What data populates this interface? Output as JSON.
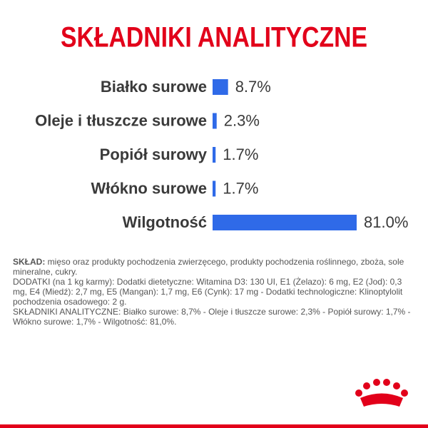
{
  "chart_data": {
    "type": "hbar",
    "title": "SKŁADNIKI ANALITYCZNE",
    "categories": [
      "Białko surowe",
      "Oleje i tłuszcze surowe",
      "Popiół surowy",
      "Włókno surowe",
      "Wilgotność"
    ],
    "values": [
      8.7,
      2.3,
      1.7,
      1.7,
      81.0
    ],
    "value_labels": [
      "8.7%",
      "2.3%",
      "1.7%",
      "1.7%",
      "81.0%"
    ],
    "color": "#2f6ae8"
  },
  "composition": {
    "label": "SKŁAD:",
    "text": "mięso oraz produkty pochodzenia zwierzęcego, produkty pochodzenia roślinnego, zboża, sole mineralne, cukry."
  },
  "additives": "DODATKI (na 1 kg karmy): Dodatki dietetyczne: Witamina D3: 130 UI, E1 (Żelazo): 6 mg, E2 (Jod): 0,3 mg, E4 (Miedź): 2,7 mg, E5 (Mangan): 1,7 mg, E6 (Cynk): 17 mg - Dodatki technologiczne: Klinoptylolit pochodzenia osadowego: 2 g.",
  "analytical": "SKŁADNIKI ANALITYCZNE: Białko surowe: 8,7% - Oleje i tłuszcze surowe: 2,3% - Popiół surowy: 1,7% - Włókno surowe: 1,7% - Wilgotność: 81,0%."
}
